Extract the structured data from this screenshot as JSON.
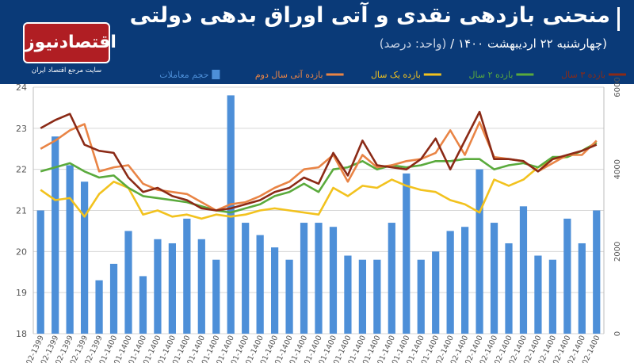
{
  "header": {
    "title": "منحنی بازدهی نقدی و آتی اوراق بدهی دولتی",
    "subtitle": "(چهارشنبه ۲۲ اردیبهشت ۱۴۰۰ /",
    "unit": "(واحد: درصد)"
  },
  "logo": {
    "name": "اقتصادنیوز",
    "tagline": "سایت مرجع اقتصاد ایران"
  },
  "colors": {
    "bg": "#0a3a78",
    "bars": "#4d8fd8",
    "y3": "#8b2a16",
    "y2": "#5aaa3c",
    "y1": "#f2c21e",
    "fut2": "#e98445"
  },
  "chart_data": {
    "type": "bar+line",
    "categories": [
      "02-1399",
      "02-1399",
      "02-1399",
      "02-1399",
      "02-1399",
      "01-1400",
      "01-1400",
      "01-1400",
      "01-1400",
      "01-1400",
      "01-1400",
      "01-1400",
      "01-1400",
      "01-1400",
      "01-1400",
      "01-1400",
      "01-1400",
      "01-1400",
      "01-1400",
      "01-1400",
      "01-1400",
      "01-1400",
      "01-1400",
      "01-1400",
      "01-1400",
      "01-1400",
      "01-1400",
      "01-1400",
      "02-1400",
      "02-1400",
      "02-1400",
      "02-1400",
      "02-1400",
      "02-1400",
      "02-1400",
      "02-1400",
      "02-1400",
      "02-1400",
      "02-1400"
    ],
    "left_axis": {
      "min": 18,
      "max": 24,
      "ticks": [
        18,
        19,
        20,
        21,
        22,
        23,
        24
      ]
    },
    "right_axis": {
      "min": 0,
      "max": 6000,
      "ticks": [
        0,
        2000,
        4000,
        6000
      ],
      "tick_labels": [
        "0",
        "2000",
        "4000",
        "6000"
      ]
    },
    "legend": [
      {
        "key": "y3",
        "label": "بازده ۳ سال"
      },
      {
        "key": "y2",
        "label": "بازده ۲ سال"
      },
      {
        "key": "y1",
        "label": "بازده یک سال"
      },
      {
        "key": "fut2",
        "label": "بازده آتی سال دوم"
      },
      {
        "key": "bars",
        "label": "حجم معاملات"
      }
    ],
    "bars": [
      3000,
      4800,
      4100,
      3700,
      1300,
      1700,
      2500,
      1400,
      2300,
      2200,
      2800,
      2300,
      1800,
      5800,
      2700,
      2400,
      2100,
      1800,
      2700,
      2700,
      2600,
      1900,
      1800,
      1800,
      2700,
      3900,
      1800,
      2000,
      2500,
      2600,
      4000,
      2700,
      2200,
      3100,
      1900,
      1800,
      2800,
      2200,
      3000
    ],
    "series": {
      "y3": [
        23.0,
        23.2,
        23.35,
        22.6,
        22.45,
        22.4,
        21.8,
        21.45,
        21.55,
        21.35,
        21.25,
        21.05,
        21.0,
        21.05,
        21.15,
        21.25,
        21.45,
        21.55,
        21.8,
        21.65,
        22.4,
        21.85,
        22.7,
        22.1,
        22.05,
        22.0,
        22.25,
        22.75,
        22.0,
        22.7,
        23.4,
        22.25,
        22.25,
        22.2,
        21.95,
        22.25,
        22.35,
        22.45,
        22.6
      ],
      "y2": [
        21.95,
        22.05,
        22.15,
        21.95,
        21.8,
        21.85,
        21.55,
        21.35,
        21.3,
        21.25,
        21.2,
        21.1,
        21.0,
        20.95,
        21.05,
        21.15,
        21.35,
        21.45,
        21.65,
        21.45,
        22.0,
        22.05,
        22.2,
        22.0,
        22.1,
        22.05,
        22.1,
        22.2,
        22.2,
        22.25,
        22.25,
        22.0,
        22.1,
        22.15,
        22.05,
        22.3,
        22.3,
        22.45,
        22.65
      ],
      "y1": [
        21.5,
        21.25,
        21.3,
        20.85,
        21.4,
        21.7,
        21.55,
        20.9,
        21.0,
        20.85,
        20.9,
        20.8,
        20.9,
        20.85,
        20.9,
        21.0,
        21.05,
        21.0,
        20.95,
        20.9,
        21.55,
        21.35,
        21.6,
        21.55,
        21.75,
        21.6,
        21.5,
        21.45,
        21.25,
        21.15,
        20.95,
        21.75,
        21.6,
        21.75,
        22.05,
        22.25,
        22.3,
        22.45,
        22.65
      ],
      "fut2": [
        22.5,
        22.7,
        22.95,
        23.1,
        21.95,
        22.05,
        22.1,
        21.65,
        21.5,
        21.45,
        21.4,
        21.2,
        21.0,
        21.15,
        21.2,
        21.35,
        21.55,
        21.7,
        22.0,
        22.05,
        22.35,
        21.7,
        22.35,
        22.05,
        22.1,
        22.2,
        22.25,
        22.4,
        22.95,
        22.35,
        23.15,
        22.3,
        22.25,
        22.2,
        21.95,
        22.15,
        22.35,
        22.35,
        22.7
      ]
    }
  }
}
